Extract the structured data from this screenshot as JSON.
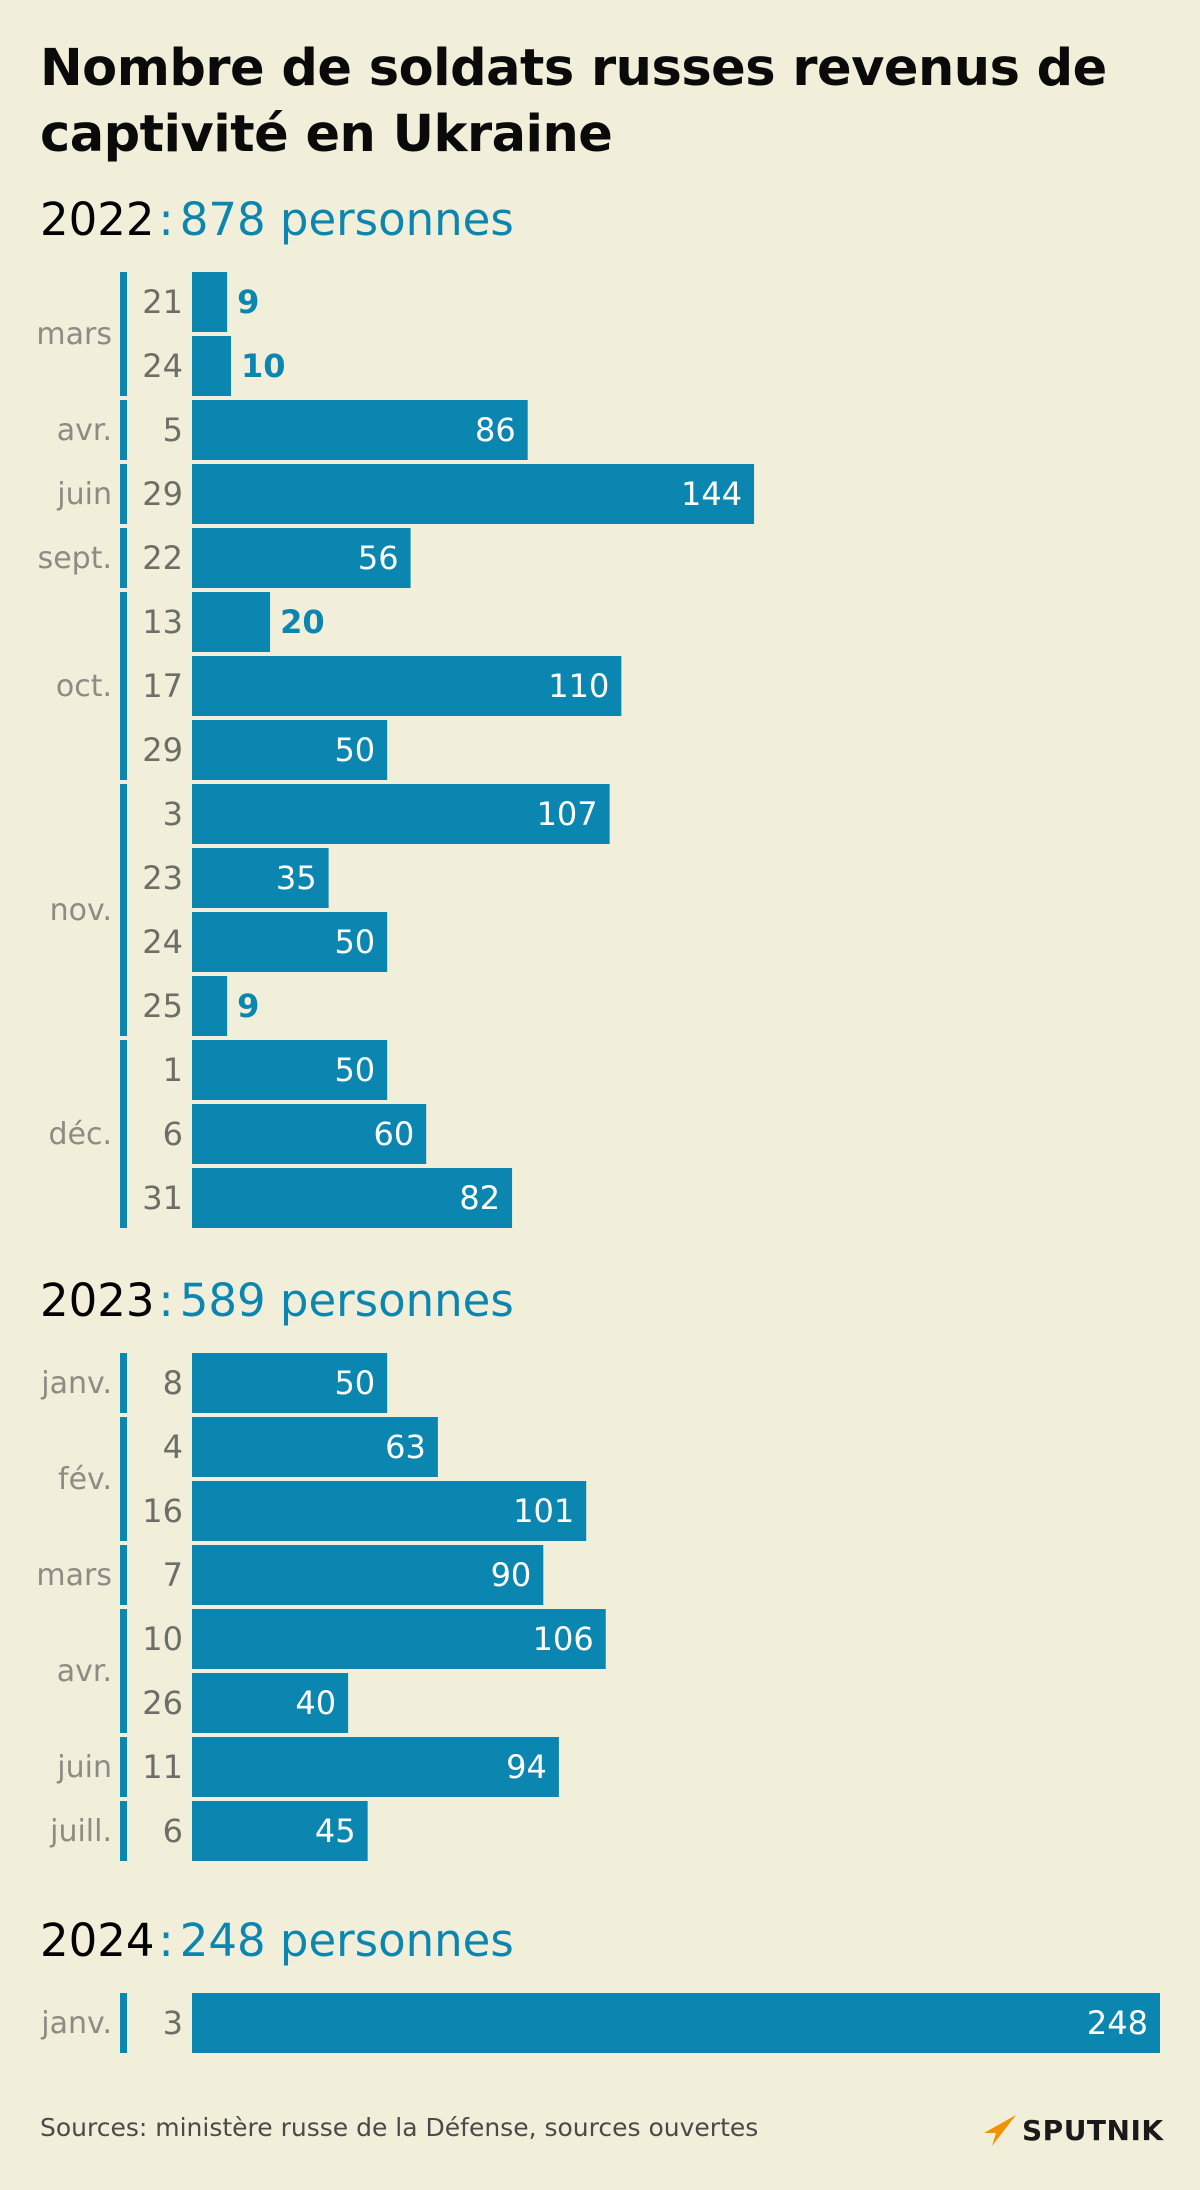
{
  "title": "Nombre de soldats russes revenus de captivité en Ukraine",
  "source": "Sources: ministère russe de la Défense, sources ouvertes",
  "logo": {
    "text": "SPUTNIK"
  },
  "colors": {
    "bar": "#0a86b0",
    "background": "#f1efd9"
  },
  "chart_data": {
    "type": "bar",
    "orientation": "horizontal",
    "value_max": 248,
    "sections": [
      {
        "year": "2022",
        "separator": ":",
        "total_label": "878 personnes",
        "months": [
          {
            "month": "mars",
            "entries": [
              {
                "day": "21",
                "value": 9
              },
              {
                "day": "24",
                "value": 10
              }
            ]
          },
          {
            "month": "avr.",
            "entries": [
              {
                "day": "5",
                "value": 86
              }
            ]
          },
          {
            "month": "juin",
            "entries": [
              {
                "day": "29",
                "value": 144
              }
            ]
          },
          {
            "month": "sept.",
            "entries": [
              {
                "day": "22",
                "value": 56
              }
            ]
          },
          {
            "month": "oct.",
            "entries": [
              {
                "day": "13",
                "value": 20
              },
              {
                "day": "17",
                "value": 110
              },
              {
                "day": "29",
                "value": 50
              }
            ]
          },
          {
            "month": "nov.",
            "entries": [
              {
                "day": "3",
                "value": 107
              },
              {
                "day": "23",
                "value": 35
              },
              {
                "day": "24",
                "value": 50
              },
              {
                "day": "25",
                "value": 9
              }
            ]
          },
          {
            "month": "déc.",
            "entries": [
              {
                "day": "1",
                "value": 50
              },
              {
                "day": "6",
                "value": 60
              },
              {
                "day": "31",
                "value": 82
              }
            ]
          }
        ]
      },
      {
        "year": "2023",
        "separator": ":",
        "total_label": "589 personnes",
        "months": [
          {
            "month": "janv.",
            "entries": [
              {
                "day": "8",
                "value": 50
              }
            ]
          },
          {
            "month": "fév.",
            "entries": [
              {
                "day": "4",
                "value": 63
              },
              {
                "day": "16",
                "value": 101
              }
            ]
          },
          {
            "month": "mars",
            "entries": [
              {
                "day": "7",
                "value": 90
              }
            ]
          },
          {
            "month": "avr.",
            "entries": [
              {
                "day": "10",
                "value": 106
              },
              {
                "day": "26",
                "value": 40
              }
            ]
          },
          {
            "month": "juin",
            "entries": [
              {
                "day": "11",
                "value": 94
              }
            ]
          },
          {
            "month": "juill.",
            "entries": [
              {
                "day": "6",
                "value": 45
              }
            ]
          }
        ]
      },
      {
        "year": "2024",
        "separator": ":",
        "total_label": "248 personnes",
        "months": [
          {
            "month": "janv.",
            "entries": [
              {
                "day": "3",
                "value": 248
              }
            ]
          }
        ]
      }
    ]
  }
}
